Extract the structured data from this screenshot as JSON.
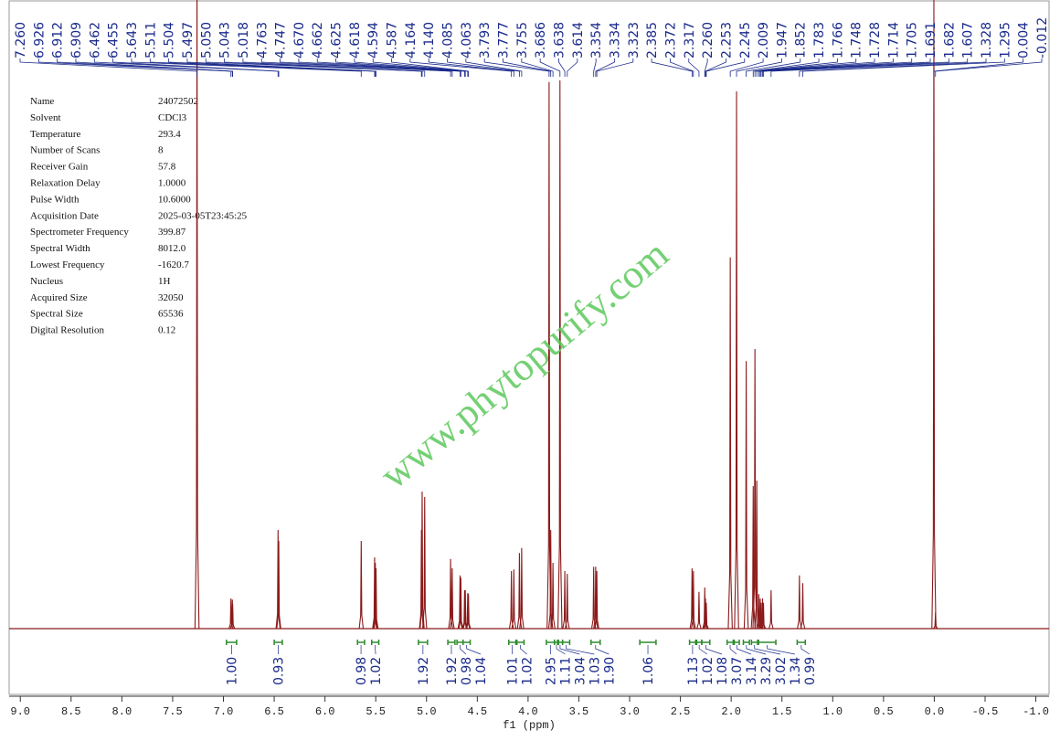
{
  "chart_data": {
    "type": "nmr",
    "xlabel": "f1 (ppm)",
    "xlim": [
      9.11,
      -1.13
    ],
    "ylim": [
      0,
      100
    ],
    "xticks": [
      {
        "value": 9,
        "label": "9.0"
      },
      {
        "value": 8.5,
        "label": "8.5"
      },
      {
        "value": 8,
        "label": "8.0"
      },
      {
        "value": 7.5,
        "label": "7.5"
      },
      {
        "value": 7,
        "label": "7.0"
      },
      {
        "value": 6.5,
        "label": "6.5"
      },
      {
        "value": 6,
        "label": "6.0"
      },
      {
        "value": 5.5,
        "label": "5.5"
      },
      {
        "value": 5,
        "label": "5.0"
      },
      {
        "value": 4.5,
        "label": "4.5"
      },
      {
        "value": 4,
        "label": "4.0"
      },
      {
        "value": 3.5,
        "label": "3.5"
      },
      {
        "value": 3,
        "label": "3.0"
      },
      {
        "value": 2.5,
        "label": "2.5"
      },
      {
        "value": 2,
        "label": "2.0"
      },
      {
        "value": 1.5,
        "label": "1.5"
      },
      {
        "value": 1,
        "label": "1.0"
      },
      {
        "value": 0.5,
        "label": "0.5"
      },
      {
        "value": 0,
        "label": "0.0"
      },
      {
        "value": -0.5,
        "label": "-0.5"
      },
      {
        "value": -1,
        "label": "-1.0"
      }
    ],
    "color": "#8b1a1a",
    "peaks": {
      "x": [
        7.26,
        6.926,
        6.912,
        6.909,
        6.462,
        6.455,
        5.643,
        5.511,
        5.504,
        5.497,
        5.05,
        5.043,
        5.018,
        4.763,
        4.747,
        4.67,
        4.662,
        4.625,
        4.618,
        4.594,
        4.587,
        4.164,
        4.14,
        4.085,
        4.063,
        3.793,
        3.777,
        3.755,
        3.686,
        3.638,
        3.614,
        3.354,
        3.334,
        3.323,
        2.385,
        2.372,
        2.317,
        2.26,
        2.253,
        2.245,
        2.009,
        1.947,
        1.852,
        1.783,
        1.766,
        1.748,
        1.728,
        1.714,
        1.705,
        1.691,
        1.682,
        1.607,
        1.328,
        1.295,
        0.004,
        -0.012
      ],
      "x_labels": [
        "7.260",
        "6.926",
        "6.912",
        "6.909",
        "6.462",
        "6.455",
        "5.643",
        "5.511",
        "5.504",
        "5.497",
        "5.050",
        "5.043",
        "5.018",
        "4.763",
        "4.747",
        "4.670",
        "4.662",
        "4.625",
        "4.618",
        "4.594",
        "4.587",
        "4.164",
        "4.140",
        "4.085",
        "4.063",
        "3.793",
        "3.777",
        "3.755",
        "3.686",
        "3.638",
        "3.614",
        "3.354",
        "3.334",
        "3.323",
        "2.385",
        "2.372",
        "2.317",
        "2.260",
        "2.253",
        "2.245",
        "2.009",
        "1.947",
        "1.852",
        "1.783",
        "1.766",
        "1.748",
        "1.728",
        "1.714",
        "1.705",
        "1.691",
        "1.682",
        "1.607",
        "1.328",
        "1.295",
        "0.004",
        "-0.012"
      ],
      "values": [
        120,
        5.5,
        5.3,
        4.5,
        18,
        16,
        16,
        13,
        12,
        11,
        18,
        25,
        24,
        12.7,
        11,
        9.7,
        9.3,
        7,
        7,
        6.5,
        6.3,
        10.5,
        10.8,
        13.8,
        14.7,
        99.7,
        18,
        12,
        100,
        10.5,
        10,
        11.3,
        11.3,
        10.5,
        11,
        10.5,
        6.7,
        7.5,
        5.5,
        4.7,
        67.7,
        98,
        48.8,
        26,
        51,
        27,
        6.3,
        5.5,
        4.7,
        5.5,
        4.7,
        7,
        9.7,
        8.3,
        115,
        3
      ]
    },
    "integrals": {
      "color": "#2e8b2e",
      "ranges": [
        [
          6.97,
          6.87
        ],
        [
          6.5,
          6.42
        ],
        [
          5.68,
          5.61
        ],
        [
          5.54,
          5.47
        ],
        [
          5.08,
          4.99
        ],
        [
          4.79,
          4.72
        ],
        [
          4.7,
          4.64
        ],
        [
          4.64,
          4.57
        ],
        [
          4.19,
          4.12
        ],
        [
          4.11,
          4.04
        ],
        [
          3.82,
          3.74
        ],
        [
          3.74,
          3.7
        ],
        [
          3.71,
          3.66
        ],
        [
          3.66,
          3.59
        ],
        [
          3.38,
          3.29
        ],
        [
          2.9,
          2.74
        ],
        [
          2.41,
          2.35
        ],
        [
          2.34,
          2.29
        ],
        [
          2.29,
          2.21
        ],
        [
          2.04,
          1.98
        ],
        [
          1.97,
          1.92
        ],
        [
          1.88,
          1.82
        ],
        [
          1.8,
          1.74
        ],
        [
          1.73,
          1.56
        ],
        [
          1.35,
          1.27
        ]
      ],
      "values": [
        1,
        0.93,
        0.98,
        1.02,
        1.92,
        1.92,
        0.98,
        1.04,
        1.01,
        1.02,
        2.95,
        1.11,
        3.04,
        1.03,
        1.9,
        1.06,
        1.13,
        1.02,
        1.08,
        3.07,
        3.14,
        3.29,
        3.02,
        1.34,
        0.99
      ],
      "value_labels": [
        "1.00",
        "0.93",
        "0.98",
        "1.02",
        "1.92",
        "1.92",
        "0.98",
        "1.04",
        "1.01",
        "1.02",
        "2.95",
        "1.11",
        "3.04",
        "1.03",
        "1.90",
        "1.06",
        "1.13",
        "1.02",
        "1.08",
        "3.07",
        "3.14",
        "3.29",
        "3.02",
        "1.34",
        "0.99"
      ]
    },
    "parameters": [
      {
        "label": "Name",
        "value": "24072502"
      },
      {
        "label": "Solvent",
        "value": "CDCl3"
      },
      {
        "label": "Temperature",
        "value": "293.4"
      },
      {
        "label": "Number of Scans",
        "value": "8"
      },
      {
        "label": "Receiver Gain",
        "value": "57.8"
      },
      {
        "label": "Relaxation Delay",
        "value": "1.0000"
      },
      {
        "label": "Pulse Width",
        "value": "10.6000"
      },
      {
        "label": "Acquisition Date",
        "value": "2025-03-05T23:45:25"
      },
      {
        "label": "Spectrometer Frequency",
        "value": "399.87"
      },
      {
        "label": "Spectral Width",
        "value": "8012.0"
      },
      {
        "label": "Lowest Frequency",
        "value": "-1620.7"
      },
      {
        "label": "Nucleus",
        "value": "1H"
      },
      {
        "label": "Acquired Size",
        "value": "32050"
      },
      {
        "label": "Spectral Size",
        "value": "65536"
      },
      {
        "label": "Digital Resolution",
        "value": "0.12"
      }
    ],
    "watermark": "www.phytopurify.com"
  }
}
